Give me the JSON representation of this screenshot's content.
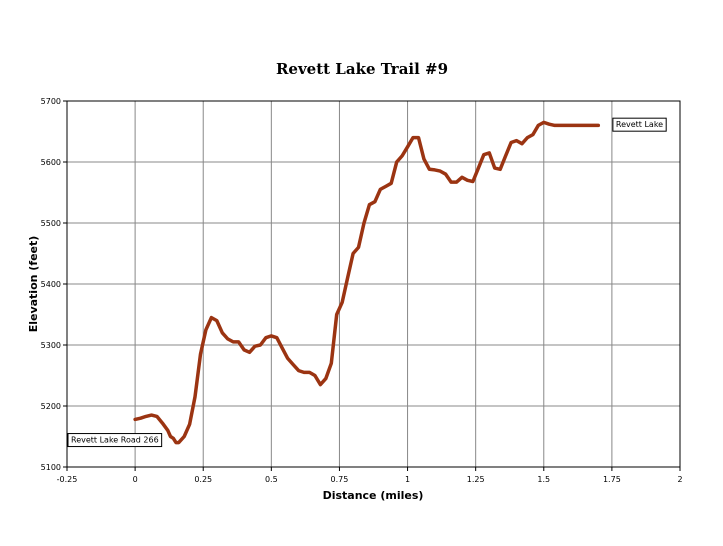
{
  "chart_data": {
    "type": "line",
    "title": "Revett Lake Trail #9",
    "xlabel": "Distance (miles)",
    "ylabel": "Elevation (feet)",
    "xlim": [
      -0.25,
      2
    ],
    "ylim": [
      5100,
      5700
    ],
    "xticks": [
      -0.25,
      0,
      0.25,
      0.5,
      0.75,
      1,
      1.25,
      1.5,
      1.75,
      2
    ],
    "xtick_labels": [
      "-0.25",
      "0",
      "0.25",
      "0.5",
      "0.75",
      "1",
      "1.25",
      "1.5",
      "1.75",
      "2"
    ],
    "yticks": [
      5100,
      5200,
      5300,
      5400,
      5500,
      5600,
      5700
    ],
    "ytick_labels": [
      "5100",
      "5200",
      "5300",
      "5400",
      "5500",
      "5600",
      "5700"
    ],
    "grid": true,
    "line_color": "#9b3412",
    "series": [
      {
        "x": [
          0,
          0.02,
          0.04,
          0.06,
          0.08,
          0.1,
          0.12,
          0.13,
          0.14,
          0.15,
          0.16,
          0.18,
          0.2,
          0.22,
          0.24,
          0.26,
          0.28,
          0.3,
          0.32,
          0.34,
          0.36,
          0.38,
          0.4,
          0.42,
          0.44,
          0.46,
          0.48,
          0.5,
          0.52,
          0.54,
          0.56,
          0.58,
          0.6,
          0.62,
          0.64,
          0.66,
          0.68,
          0.7,
          0.72,
          0.74,
          0.76,
          0.78,
          0.8,
          0.82,
          0.84,
          0.86,
          0.88,
          0.9,
          0.92,
          0.94,
          0.96,
          0.98,
          1.0,
          1.02,
          1.04,
          1.06,
          1.08,
          1.1,
          1.12,
          1.14,
          1.16,
          1.18,
          1.2,
          1.22,
          1.24,
          1.26,
          1.28,
          1.3,
          1.32,
          1.34,
          1.36,
          1.38,
          1.4,
          1.42,
          1.44,
          1.46,
          1.48,
          1.5,
          1.52,
          1.54,
          1.56,
          1.58,
          1.6,
          1.62,
          1.64,
          1.66,
          1.68,
          1.7
        ],
        "y": [
          5178,
          5180,
          5183,
          5185,
          5183,
          5172,
          5160,
          5150,
          5147,
          5140,
          5140,
          5150,
          5170,
          5215,
          5285,
          5325,
          5345,
          5340,
          5320,
          5310,
          5305,
          5305,
          5292,
          5288,
          5298,
          5300,
          5312,
          5315,
          5312,
          5295,
          5278,
          5268,
          5258,
          5255,
          5255,
          5250,
          5235,
          5245,
          5270,
          5350,
          5370,
          5410,
          5450,
          5460,
          5500,
          5530,
          5535,
          5555,
          5560,
          5565,
          5600,
          5610,
          5625,
          5640,
          5640,
          5605,
          5588,
          5587,
          5585,
          5580,
          5567,
          5567,
          5575,
          5570,
          5568,
          5590,
          5612,
          5615,
          5590,
          5588,
          5610,
          5632,
          5635,
          5630,
          5640,
          5645,
          5660,
          5665,
          5662,
          5660,
          5660,
          5660,
          5660,
          5660,
          5660,
          5660,
          5660,
          5660
        ]
      }
    ],
    "annotations": [
      {
        "text": "Revett Lake Road 266",
        "x": -0.25,
        "y": 5145,
        "anchor": "left"
      },
      {
        "text": "Revett Lake",
        "x": 1.75,
        "y": 5662,
        "anchor": "left"
      }
    ]
  }
}
